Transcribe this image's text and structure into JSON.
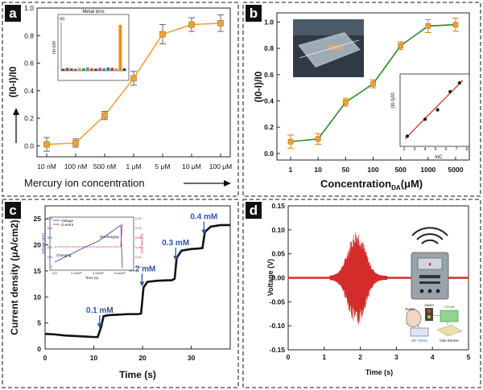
{
  "panels": {
    "a": "a",
    "b": "b",
    "c": "c",
    "d": "d"
  },
  "chart_data": [
    {
      "id": "a",
      "type": "line",
      "categories": [
        "10 nM",
        "100 nM",
        "500 nM",
        "1 μM",
        "5 μM",
        "10 μM",
        "100 μM"
      ],
      "values": [
        0.01,
        0.02,
        0.22,
        0.49,
        0.81,
        0.88,
        0.89
      ],
      "errors": [
        0.05,
        0.03,
        0.03,
        0.05,
        0.07,
        0.05,
        0.06
      ],
      "ylabel": "(I0-I)/I0",
      "xlabel": "Mercury ion concentration",
      "yticks": [
        "0.0",
        "0.2",
        "0.4",
        "0.6",
        "0.8",
        "1.0"
      ],
      "ylim": [
        -0.08,
        1.0
      ],
      "line_color": "#f0a13a",
      "inset": {
        "type": "bar",
        "title": "(d)",
        "xlabel": "Metal ions",
        "ylabel": "(I0-I)/I0",
        "values": [
          0.04,
          0.06,
          0.05,
          0.04,
          0.06,
          0.05,
          0.07,
          0.05,
          0.04,
          0.06,
          0.05,
          0.07,
          0.06,
          0.05,
          0.95,
          0.05
        ],
        "highlight_index": 14
      }
    },
    {
      "id": "b",
      "type": "line",
      "categories": [
        "1",
        "10",
        "50",
        "100",
        "500",
        "1000",
        "5000"
      ],
      "values": [
        0.09,
        0.11,
        0.39,
        0.53,
        0.82,
        0.97,
        0.98
      ],
      "errors": [
        0.05,
        0.04,
        0.03,
        0.03,
        0.03,
        0.05,
        0.05
      ],
      "ylabel": "(I0-I)/I0",
      "xlabel_main": "Concentration",
      "xlabel_sub": "DA",
      "xlabel_unit": "(μM)",
      "yticks": [
        "0.0",
        "0.2",
        "0.4",
        "0.6",
        "0.8",
        "1.0"
      ],
      "ylim": [
        -0.05,
        1.07
      ],
      "line_color": "#2a8a2a",
      "inset": {
        "type": "line",
        "ylabel": "(I0-I)/I0",
        "xlabel": "lnC",
        "xticks": [
          "2",
          "3",
          "4",
          "5",
          "6",
          "7",
          "8"
        ],
        "x": [
          2.3,
          4.0,
          5.2,
          6.4,
          7.3
        ],
        "y": [
          0.11,
          0.38,
          0.53,
          0.82,
          0.96
        ]
      }
    },
    {
      "id": "c",
      "type": "line",
      "xlabel": "Time (s)",
      "ylabel": "Current density (μA/cm2)",
      "xticks": [
        "0",
        "10",
        "20",
        "30"
      ],
      "yticks": [
        "0",
        "5",
        "10",
        "15",
        "20",
        "25"
      ],
      "xlim": [
        0,
        38
      ],
      "ylim": [
        0,
        27.5
      ],
      "x": [
        0,
        2,
        4,
        6,
        8,
        10,
        10.8,
        11.5,
        12,
        13,
        15,
        17,
        19,
        19.7,
        20.2,
        21,
        23,
        25,
        26,
        26.6,
        27,
        28,
        30,
        31.5,
        32.3,
        32.8,
        34,
        36,
        38
      ],
      "y": [
        2.9,
        2.8,
        2.6,
        2.5,
        2.4,
        2.3,
        2.3,
        4.2,
        6.3,
        6.5,
        6.6,
        6.7,
        6.7,
        6.8,
        11.8,
        12.9,
        13.1,
        13.2,
        13.2,
        13.5,
        17.5,
        18.9,
        19.2,
        19.3,
        19.4,
        22.5,
        23.5,
        23.8,
        23.8
      ],
      "annotations": [
        {
          "text": "0.1 mM",
          "x": 11.2,
          "y": 4
        },
        {
          "text": "0.2 mM",
          "x": 19.9,
          "y": 12
        },
        {
          "text": "0.3 mM",
          "x": 26.8,
          "y": 17
        },
        {
          "text": "0.4 mM",
          "x": 32.6,
          "y": 22
        }
      ],
      "line_color": "#111111",
      "inset": {
        "legend": [
          "Voltage",
          "Current"
        ],
        "labels": [
          "Charging",
          "Discharging"
        ],
        "xlabel": "Time (s)",
        "ylabel_left": "Voltage (mV)",
        "ylabel_right": "Current (nA)",
        "xticks": [
          "0.0",
          "2.0x10⁵",
          "4.0x10⁵",
          "6.0x10⁵"
        ],
        "yticks_left": [
          "0",
          "100",
          "200",
          "300",
          "400",
          "500"
        ],
        "yticks_right": [
          "0.12",
          "0.10",
          "0.08",
          "0.06",
          "0.04",
          "0.02"
        ]
      }
    },
    {
      "id": "d",
      "type": "line",
      "xlabel": "Time (s)",
      "ylabel": "Voltage (V)",
      "xticks": [
        "0",
        "1",
        "2",
        "3",
        "4",
        "5"
      ],
      "yticks": [
        "-0.15",
        "-0.10",
        "-0.05",
        "0.00",
        "0.05",
        "0.10",
        "0.15"
      ],
      "xlim": [
        0,
        5
      ],
      "ylim": [
        -0.15,
        0.15
      ],
      "burst": {
        "start_s": 1.15,
        "end_s": 2.75,
        "peak_s": 1.9,
        "peak_amplitude_v": 0.098
      },
      "line_color": "#d42b2b",
      "icon_labels": {
        "tester": "Tester",
        "alarm": "Alarm",
        "circuit": "Circuit",
        "seteng": "SD-TENG",
        "gas": "Gas Sensor"
      }
    }
  ]
}
